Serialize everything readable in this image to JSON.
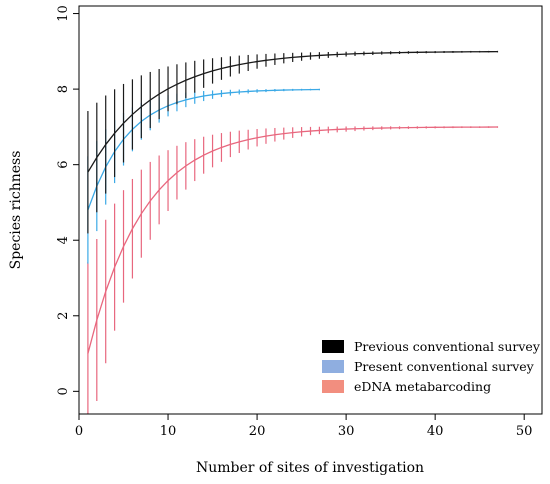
{
  "chart_data": {
    "type": "line",
    "xlabel": "Number of sites of investigation",
    "ylabel": "Species richness",
    "xlim": [
      0,
      52
    ],
    "ylim": [
      -0.6,
      10.2
    ],
    "xticks": [
      "0",
      "10",
      "20",
      "30",
      "40",
      "50"
    ],
    "yticks": [
      "0",
      "2",
      "4",
      "6",
      "8",
      "10"
    ],
    "legend_position": "bottom-right",
    "series": [
      {
        "name": "eDNA metabarcoding",
        "color": "#e8677e",
        "legend_color": "#f28e7f",
        "n": 47,
        "mean_start": 1.0,
        "mean_end": 7.0,
        "mean_rate": 0.16,
        "sd_start": 2.4,
        "sd_end": 0.0,
        "sd_rate": 0.1
      },
      {
        "name": "Present conventional survey",
        "color": "#3ba9e6",
        "legend_color": "#8faee0",
        "n": 27,
        "mean_start": 4.8,
        "mean_end": 8.0,
        "mean_rate": 0.22,
        "sd_start": 1.4,
        "sd_end": 0.0,
        "sd_rate": 0.14
      },
      {
        "name": "Previous conventional survey",
        "color": "#1a1a1a",
        "legend_color": "#000000",
        "n": 47,
        "mean_start": 5.8,
        "mean_end": 9.0,
        "mean_rate": 0.13,
        "sd_start": 1.6,
        "sd_end": 0.0,
        "sd_rate": 0.09
      }
    ],
    "legend_order": [
      "Previous conventional survey",
      "Present conventional survey",
      "eDNA metabarcoding"
    ]
  }
}
